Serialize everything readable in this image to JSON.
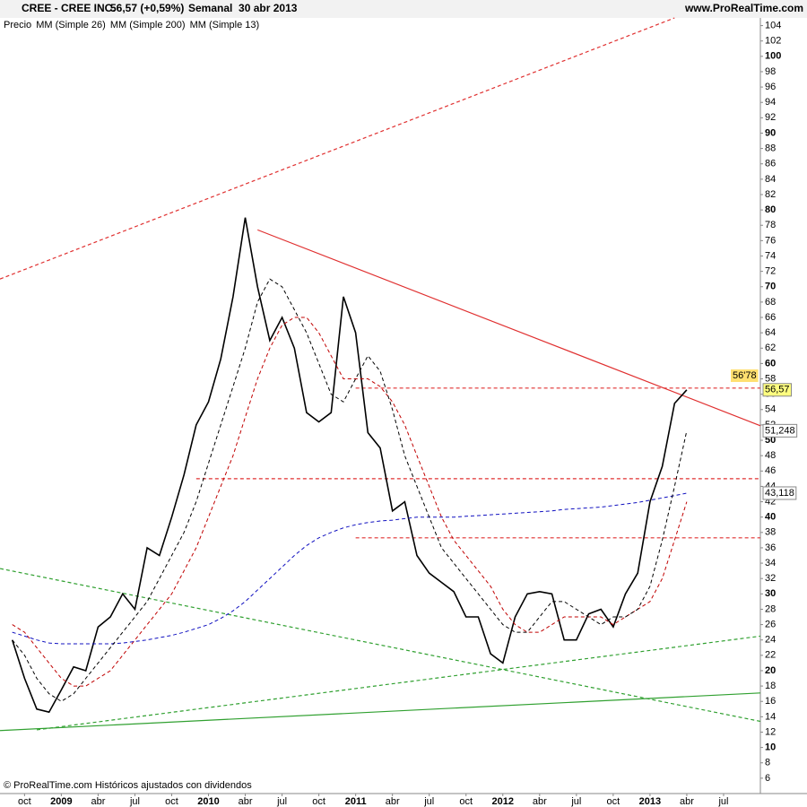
{
  "chart_data": {
    "type": "line",
    "title": "CREE - CREE INC.",
    "subtitle": "56,57 (+0,59%)",
    "period": "Semanal  30 abr 2013",
    "source": "www.ProRealTime.com",
    "footer": "© ProRealTime.com Históricos ajustados con dividendos",
    "x": [
      "2008-09",
      "2008-10",
      "2008-11",
      "2008-12",
      "2009-01",
      "2009-02",
      "2009-03",
      "2009-04",
      "2009-05",
      "2009-06",
      "2009-07",
      "2009-08",
      "2009-09",
      "2009-10",
      "2009-11",
      "2009-12",
      "2010-01",
      "2010-02",
      "2010-03",
      "2010-04",
      "2010-05",
      "2010-06",
      "2010-07",
      "2010-08",
      "2010-09",
      "2010-10",
      "2010-11",
      "2010-12",
      "2011-01",
      "2011-02",
      "2011-03",
      "2011-04",
      "2011-05",
      "2011-06",
      "2011-07",
      "2011-08",
      "2011-09",
      "2011-10",
      "2011-11",
      "2011-12",
      "2012-01",
      "2012-02",
      "2012-03",
      "2012-04",
      "2012-05",
      "2012-06",
      "2012-07",
      "2012-08",
      "2012-09",
      "2012-10",
      "2012-11",
      "2012-12",
      "2013-01",
      "2013-02",
      "2013-03",
      "2013-04"
    ],
    "series": [
      {
        "name": "Precio",
        "color": "#000000",
        "dash": false,
        "values": [
          24,
          19,
          15,
          14.6,
          17.5,
          20.5,
          20,
          25.7,
          27,
          30,
          28,
          36,
          35,
          40,
          45.5,
          52,
          55,
          60.6,
          68.7,
          79,
          70,
          63,
          66,
          62,
          53.6,
          52.4,
          53.6,
          68.7,
          64,
          51,
          49,
          40.8,
          42,
          35,
          32.7,
          31.5,
          30.3,
          27,
          27,
          22.2,
          21,
          27,
          30,
          30.3,
          30,
          24,
          24,
          27.4,
          28,
          25.7,
          30,
          32.7,
          42,
          46.6,
          54.8,
          56.57
        ]
      },
      {
        "name": "MM (Simple 26)",
        "color": "#c00000",
        "dash": true,
        "values": [
          26,
          25,
          23,
          21,
          19,
          18,
          18,
          19,
          20,
          22,
          24,
          26,
          28,
          30,
          33,
          36,
          40,
          44,
          48,
          53,
          58,
          62,
          65,
          66,
          66,
          64,
          61,
          58,
          58,
          58,
          57,
          55,
          52,
          48,
          44,
          40,
          37,
          35,
          33,
          31,
          28,
          26,
          25,
          25,
          26,
          27,
          27,
          27,
          27,
          26,
          27,
          28,
          29,
          32,
          37,
          42
        ]
      },
      {
        "name": "MM (Simple 200)",
        "color": "#1010c0",
        "dash": true,
        "values": [
          25,
          24.5,
          24,
          23.6,
          23.5,
          23.5,
          23.5,
          23.5,
          23.5,
          23.6,
          23.8,
          24,
          24.3,
          24.6,
          25,
          25.5,
          26,
          26.8,
          27.8,
          29,
          30.5,
          32,
          33.5,
          35,
          36.3,
          37.3,
          38,
          38.6,
          39,
          39.3,
          39.5,
          39.6,
          39.8,
          40,
          40,
          40,
          40,
          40.1,
          40.2,
          40.3,
          40.4,
          40.5,
          40.6,
          40.7,
          40.8,
          41,
          41.1,
          41.2,
          41.3,
          41.5,
          41.7,
          41.9,
          42.2,
          42.5,
          42.8,
          43.118
        ]
      },
      {
        "name": "MM (Simple 13)",
        "color": "#000000",
        "dash": true,
        "values": [
          24,
          22,
          19,
          17,
          16,
          17,
          19,
          21,
          23,
          25,
          27,
          29,
          32,
          35,
          38,
          42,
          47,
          52,
          57,
          62,
          68,
          71,
          70,
          67,
          64,
          60,
          56,
          55,
          58,
          61,
          59,
          54,
          48,
          44,
          40,
          36,
          34,
          32,
          30,
          28,
          26,
          25,
          25,
          27,
          29,
          29,
          28,
          27,
          26,
          27,
          27,
          28,
          31,
          37,
          44,
          51.248
        ]
      }
    ],
    "markers": [
      {
        "value": 56.78,
        "label": "56'78",
        "color": "#ffe070",
        "text_color": "#c06000"
      },
      {
        "value": 56.57,
        "label": "56,57",
        "color": "#ffff80",
        "text_color": "#000000"
      },
      {
        "value": 51.248,
        "label": "51,248",
        "color": "#ffffff",
        "text_color": "#000000"
      },
      {
        "value": 43.118,
        "label": "43,118",
        "color": "#ffffff",
        "text_color": "#1010c0"
      }
    ],
    "lines": [
      {
        "from": [
          "2008-08",
          71
        ],
        "to": [
          "2013-03",
          105
        ],
        "color": "#e03030",
        "dash": true
      },
      {
        "from": [
          "2010-05",
          77.4
        ],
        "to": [
          "2013-10",
          51.9
        ],
        "color": "#e03030",
        "dash": false
      },
      {
        "from": [
          "2011-01",
          56.8
        ],
        "to": [
          "2013-10",
          56.8
        ],
        "color": "#e03030",
        "dash": true
      },
      {
        "from": [
          "2009-12",
          45
        ],
        "to": [
          "2013-10",
          45
        ],
        "color": "#e03030",
        "dash": true
      },
      {
        "from": [
          "2011-01",
          37.3
        ],
        "to": [
          "2013-10",
          37.3
        ],
        "color": "#e03030",
        "dash": true
      },
      {
        "from": [
          "2008-08",
          33.3
        ],
        "to": [
          "2013-10",
          13.4
        ],
        "color": "#30a030",
        "dash": true
      },
      {
        "from": [
          "2008-11",
          12.3
        ],
        "to": [
          "2013-10",
          24.5
        ],
        "color": "#30a030",
        "dash": true
      },
      {
        "from": [
          "2008-08",
          12.2
        ],
        "to": [
          "2013-10",
          17.1
        ],
        "color": "#30a030",
        "dash": false
      }
    ],
    "xlim": [
      "2008-08",
      "2013-10"
    ],
    "xticks": [
      {
        "value": "2008-10",
        "label": "oct"
      },
      {
        "value": "2009-01",
        "label": "2009"
      },
      {
        "value": "2009-04",
        "label": "abr"
      },
      {
        "value": "2009-07",
        "label": "jul"
      },
      {
        "value": "2009-10",
        "label": "oct"
      },
      {
        "value": "2010-01",
        "label": "2010"
      },
      {
        "value": "2010-04",
        "label": "abr"
      },
      {
        "value": "2010-07",
        "label": "jul"
      },
      {
        "value": "2010-10",
        "label": "oct"
      },
      {
        "value": "2011-01",
        "label": "2011"
      },
      {
        "value": "2011-04",
        "label": "abr"
      },
      {
        "value": "2011-07",
        "label": "jul"
      },
      {
        "value": "2011-10",
        "label": "oct"
      },
      {
        "value": "2012-01",
        "label": "2012"
      },
      {
        "value": "2012-04",
        "label": "abr"
      },
      {
        "value": "2012-07",
        "label": "jul"
      },
      {
        "value": "2012-10",
        "label": "oct"
      },
      {
        "value": "2013-01",
        "label": "2013"
      },
      {
        "value": "2013-04",
        "label": "abr"
      },
      {
        "value": "2013-07",
        "label": "jul"
      }
    ],
    "ylim": [
      4,
      105
    ],
    "yticks": [
      6,
      8,
      10,
      12,
      14,
      16,
      18,
      20,
      22,
      24,
      26,
      28,
      30,
      32,
      34,
      36,
      38,
      40,
      42,
      44,
      46,
      48,
      50,
      52,
      54,
      56,
      58,
      60,
      62,
      64,
      66,
      68,
      70,
      72,
      74,
      76,
      78,
      80,
      82,
      84,
      86,
      88,
      90,
      92,
      94,
      96,
      98,
      100,
      102,
      104
    ]
  }
}
